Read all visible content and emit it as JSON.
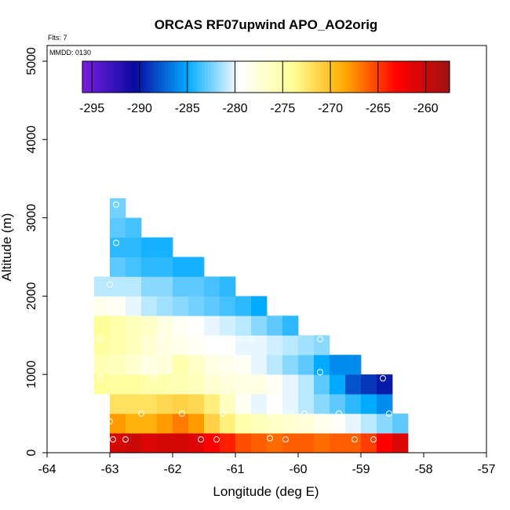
{
  "chart_data": {
    "type": "heatmap",
    "title": "ORCAS RF07upwind APO_AO2orig",
    "subtitle_flts": "Flts: 7",
    "subtitle_mmdd": "MMDD: 0130",
    "xlabel": "Longitude (deg E)",
    "ylabel": "Altitude (m)",
    "xlim": [
      -64,
      -57
    ],
    "ylim": [
      0,
      5200
    ],
    "x_ticks": [
      -64,
      -63,
      -62,
      -61,
      -60,
      -59,
      -58,
      -57
    ],
    "y_ticks": [
      0,
      1000,
      2000,
      3000,
      4000,
      5000
    ],
    "cell_width_deg": 0.25,
    "cell_height_m": 250,
    "colorbar": {
      "range": [
        -296,
        -257.5
      ],
      "ticks": [
        -295,
        -290,
        -285,
        -280,
        -275,
        -270,
        -265,
        -260
      ],
      "colors": [
        "#7a1fe0",
        "#0a0aa0",
        "#00aaff",
        "#ffffff",
        "#ffff99",
        "#ffaa00",
        "#ff0000",
        "#a01010"
      ]
    },
    "rows": [
      {
        "alt": 0,
        "lon_start": -63.0,
        "values": [
          -260.5,
          -260,
          -261,
          -260.5,
          -260.5,
          -261,
          -263,
          -264,
          -265.5,
          -266,
          -266.5,
          -266,
          -266,
          -266.5,
          -266,
          -266,
          -265,
          -263,
          -261
        ]
      },
      {
        "alt": 250,
        "lon_start": -63.0,
        "values": [
          -268,
          -269,
          -269,
          -268,
          -267,
          -268,
          -271,
          -273,
          -275,
          -276,
          -276.5,
          -277,
          -277.5,
          -278.5,
          -279,
          -280,
          -281,
          -282,
          -283
        ]
      },
      {
        "alt": 500,
        "lon_start": -63.0,
        "values": [
          -272,
          -272,
          -272,
          -271.5,
          -271,
          -271.5,
          -273,
          -276,
          -279,
          -280,
          -279.5,
          -280,
          -281,
          -282,
          -283,
          -284,
          -285,
          -286
        ]
      },
      {
        "alt": 750,
        "lon_start": -63.25,
        "values": [
          -274,
          -274.5,
          -274.5,
          -275,
          -275,
          -275.5,
          -276,
          -277,
          -277.5,
          -278,
          -278,
          -279,
          -280,
          -281,
          -283,
          -285,
          -288,
          -289,
          -290
        ]
      },
      {
        "alt": 1000,
        "lon_start": -63.25,
        "values": [
          -275.5,
          -276,
          -277,
          -278,
          -277.5,
          -275,
          -276.5,
          -278,
          -278.5,
          -279,
          -280,
          -281,
          -282,
          -283,
          -285,
          -286,
          -286
        ]
      },
      {
        "alt": 1250,
        "lon_start": -63.25,
        "values": [
          -274.5,
          -275,
          -276,
          -277,
          -278,
          -278.5,
          -279,
          -279.5,
          -279.5,
          -280,
          -280,
          -280.5,
          -281,
          -281.5,
          -282
        ]
      },
      {
        "alt": 1500,
        "lon_start": -63.25,
        "values": [
          -274,
          -275,
          -276,
          -276.5,
          -278,
          -279,
          -279.5,
          -280,
          -280.5,
          -281,
          -282,
          -283,
          -284
        ]
      },
      {
        "alt": 1750,
        "lon_start": -63.25,
        "values": [
          -278.5,
          -279,
          -280,
          -281,
          -281.5,
          -282,
          -282.5,
          -283,
          -283.5,
          -284,
          -285
        ]
      },
      {
        "alt": 2000,
        "lon_start": -63.25,
        "values": [
          -281,
          -281,
          -281,
          -282,
          -282,
          -283,
          -283,
          -283.5,
          -284
        ]
      },
      {
        "alt": 2250,
        "lon_start": -63.0,
        "values": [
          -283,
          -283.5,
          -284,
          -284,
          -284.5,
          -284.5
        ]
      },
      {
        "alt": 2500,
        "lon_start": -63.0,
        "values": [
          -284,
          -284,
          -284.5,
          -284.5
        ]
      },
      {
        "alt": 2750,
        "lon_start": -63.0,
        "values": [
          -283,
          -283.5
        ]
      },
      {
        "alt": 3000,
        "lon_start": -63.0,
        "values": [
          -282.5
        ]
      }
    ],
    "sample_points": [
      [
        -62.95,
        170
      ],
      [
        -62.75,
        170
      ],
      [
        -61.55,
        170
      ],
      [
        -61.3,
        170
      ],
      [
        -60.45,
        185
      ],
      [
        -60.2,
        170
      ],
      [
        -59.1,
        170
      ],
      [
        -58.8,
        170
      ],
      [
        -63.0,
        400
      ],
      [
        -62.5,
        500
      ],
      [
        -61.85,
        500
      ],
      [
        -61.2,
        500
      ],
      [
        -60.45,
        500
      ],
      [
        -59.9,
        500
      ],
      [
        -59.35,
        500
      ],
      [
        -58.55,
        500
      ],
      [
        -63.15,
        950
      ],
      [
        -62.3,
        950
      ],
      [
        -61.15,
        950
      ],
      [
        -60.55,
        950
      ],
      [
        -59.65,
        1030
      ],
      [
        -58.65,
        950
      ],
      [
        -63.15,
        1450
      ],
      [
        -62.2,
        1450
      ],
      [
        -60.95,
        1450
      ],
      [
        -60.75,
        1450
      ],
      [
        -59.65,
        1450
      ],
      [
        -63.0,
        2150
      ],
      [
        -62.9,
        2680
      ],
      [
        -62.9,
        3170
      ]
    ]
  }
}
